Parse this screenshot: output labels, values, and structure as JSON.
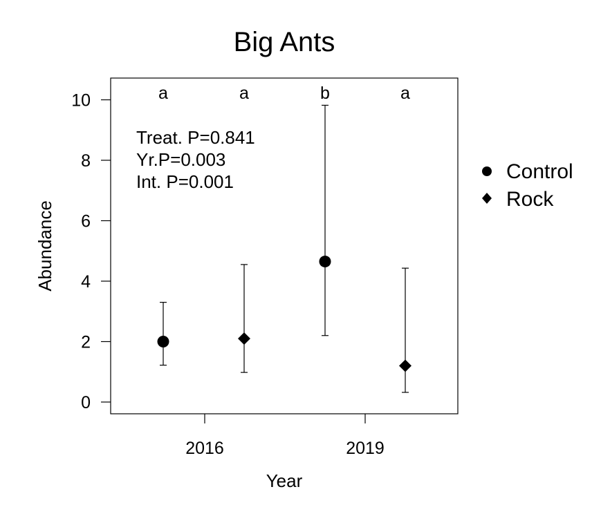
{
  "chart_data": {
    "type": "scatter",
    "title": "Big Ants",
    "xlabel": "Year",
    "ylabel": "Abundance",
    "ylim": [
      -0.35,
      10.75
    ],
    "y_ticks": [
      0,
      2,
      4,
      6,
      8,
      10
    ],
    "y_tick_labels": [
      "0",
      "2",
      "4",
      "6",
      "8",
      "10"
    ],
    "x_categories": [
      "2016",
      "2019"
    ],
    "grid": false,
    "legend": {
      "position": "right",
      "entries": [
        {
          "label": "Control",
          "marker": "circle"
        },
        {
          "label": "Rock",
          "marker": "diamond"
        }
      ]
    },
    "series": [
      {
        "name": "Control",
        "marker": "circle",
        "points": [
          {
            "year": "2016",
            "value": 2.0,
            "lower": 1.22,
            "upper": 3.3,
            "letter": "a"
          },
          {
            "year": "2019",
            "value": 4.65,
            "lower": 2.2,
            "upper": 9.82,
            "letter": "b"
          }
        ]
      },
      {
        "name": "Rock",
        "marker": "diamond",
        "points": [
          {
            "year": "2016",
            "value": 2.1,
            "lower": 0.98,
            "upper": 4.55,
            "letter": "a"
          },
          {
            "year": "2019",
            "value": 1.2,
            "lower": 0.32,
            "upper": 4.43,
            "letter": "a"
          }
        ]
      }
    ],
    "annotations": [
      "Treat. P=0.841",
      "Yr.P=0.003",
      "Int. P=0.001"
    ]
  },
  "colors": {
    "ink": "#000000",
    "background": "#ffffff"
  }
}
